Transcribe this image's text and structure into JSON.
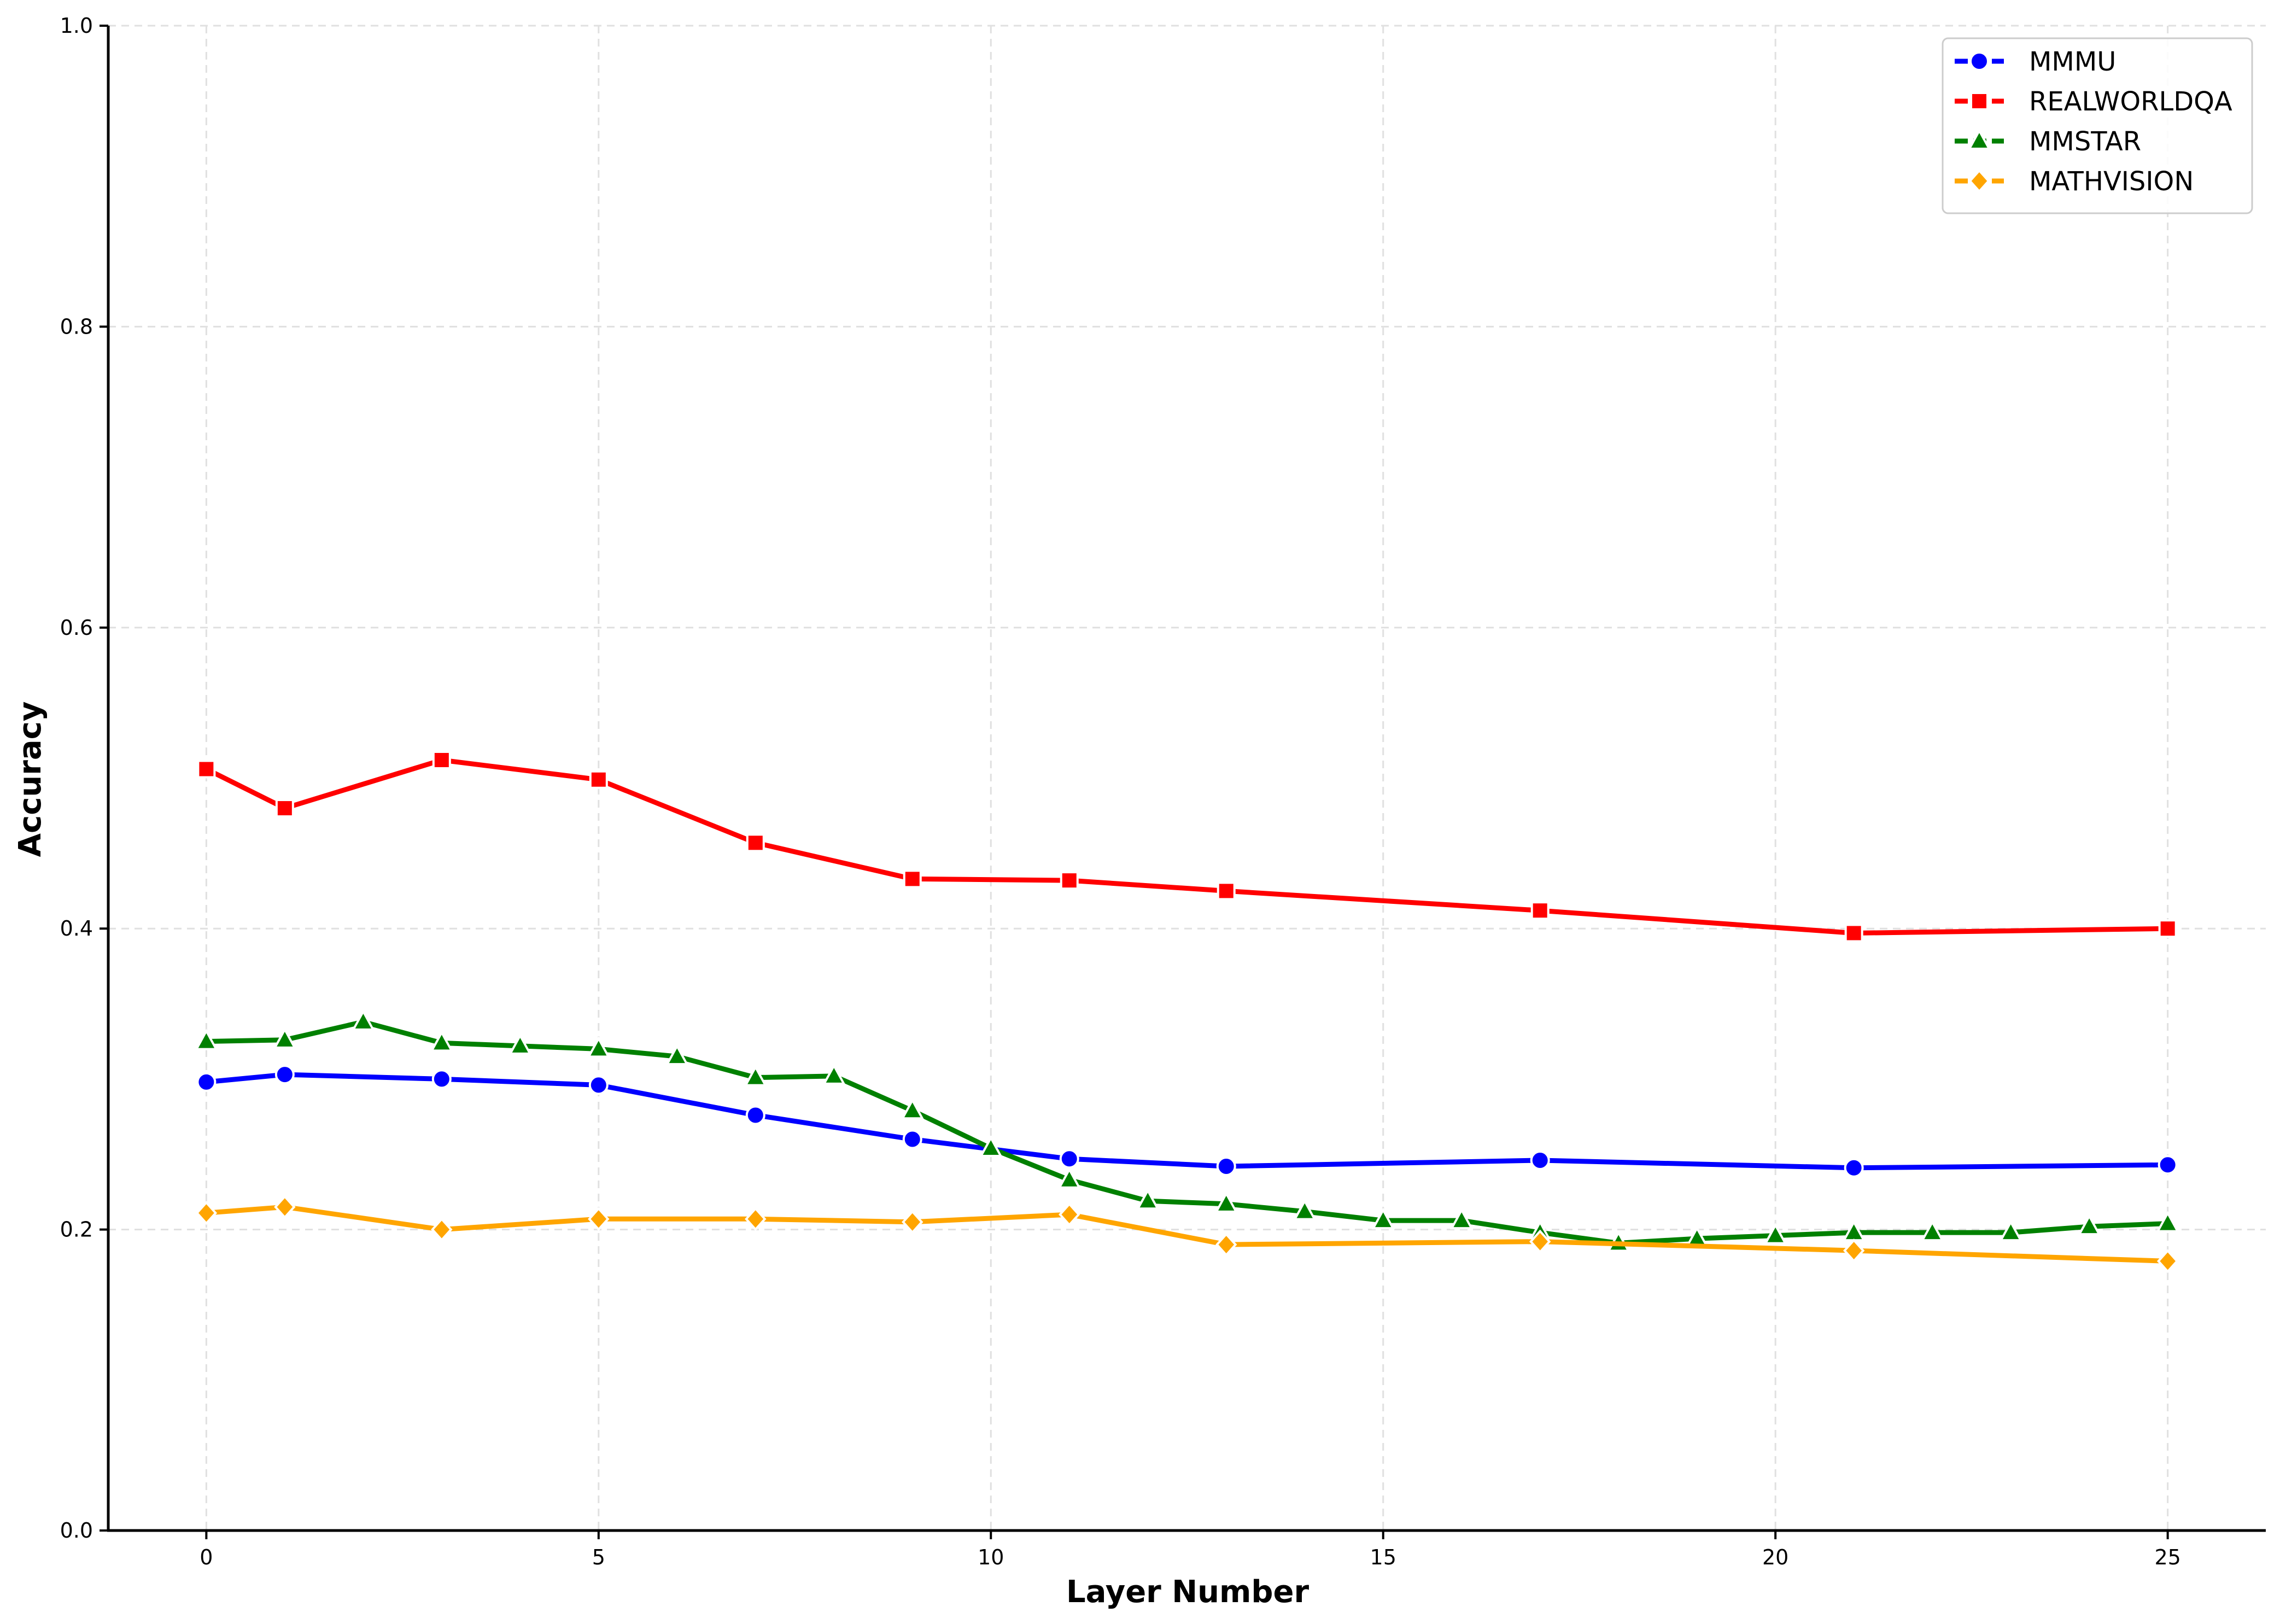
{
  "chart_data": {
    "type": "line",
    "title": "",
    "xlabel": "Layer Number",
    "ylabel": "Accuracy",
    "xlim": [
      -1.25,
      26.25
    ],
    "ylim": [
      0.0,
      1.0
    ],
    "xticks": [
      0,
      5,
      10,
      15,
      20,
      25
    ],
    "yticks": [
      0.0,
      0.2,
      0.4,
      0.6,
      0.8,
      1.0
    ],
    "xtick_labels": [
      "0",
      "5",
      "10",
      "15",
      "20",
      "25"
    ],
    "ytick_labels": [
      "0.0",
      "0.2",
      "0.4",
      "0.6",
      "0.8",
      "1.0"
    ],
    "grid": true,
    "legend_position": "top-right",
    "series": [
      {
        "name": "MMMU",
        "color": "#0000ff",
        "marker": "circle",
        "x": [
          0,
          1,
          3,
          5,
          7,
          9,
          11,
          13,
          17,
          21,
          25
        ],
        "y": [
          0.298,
          0.303,
          0.3,
          0.296,
          0.276,
          0.26,
          0.247,
          0.242,
          0.246,
          0.241,
          0.243
        ]
      },
      {
        "name": "REALWORLDQA",
        "color": "#ff0000",
        "marker": "square",
        "x": [
          0,
          1,
          3,
          5,
          7,
          9,
          11,
          13,
          17,
          21,
          25
        ],
        "y": [
          0.506,
          0.48,
          0.512,
          0.499,
          0.457,
          0.433,
          0.432,
          0.425,
          0.412,
          0.397,
          0.4
        ]
      },
      {
        "name": "MMSTAR",
        "color": "#008000",
        "marker": "triangle",
        "x": [
          0,
          1,
          2,
          3,
          4,
          5,
          6,
          7,
          8,
          9,
          10,
          11,
          12,
          13,
          14,
          15,
          16,
          17,
          18,
          19,
          20,
          21,
          22,
          23,
          24,
          25
        ],
        "y": [
          0.325,
          0.326,
          0.338,
          0.324,
          0.322,
          0.32,
          0.315,
          0.301,
          0.302,
          0.279,
          0.254,
          0.233,
          0.219,
          0.217,
          0.212,
          0.206,
          0.206,
          0.198,
          0.191,
          0.194,
          0.196,
          0.198,
          0.198,
          0.198,
          0.202,
          0.204
        ]
      },
      {
        "name": "MATHVISION",
        "color": "#ffa500",
        "marker": "diamond",
        "x": [
          0,
          1,
          3,
          5,
          7,
          9,
          11,
          13,
          17,
          21,
          25
        ],
        "y": [
          0.211,
          0.215,
          0.2,
          0.207,
          0.207,
          0.205,
          0.21,
          0.19,
          0.192,
          0.186,
          0.179
        ]
      }
    ]
  }
}
